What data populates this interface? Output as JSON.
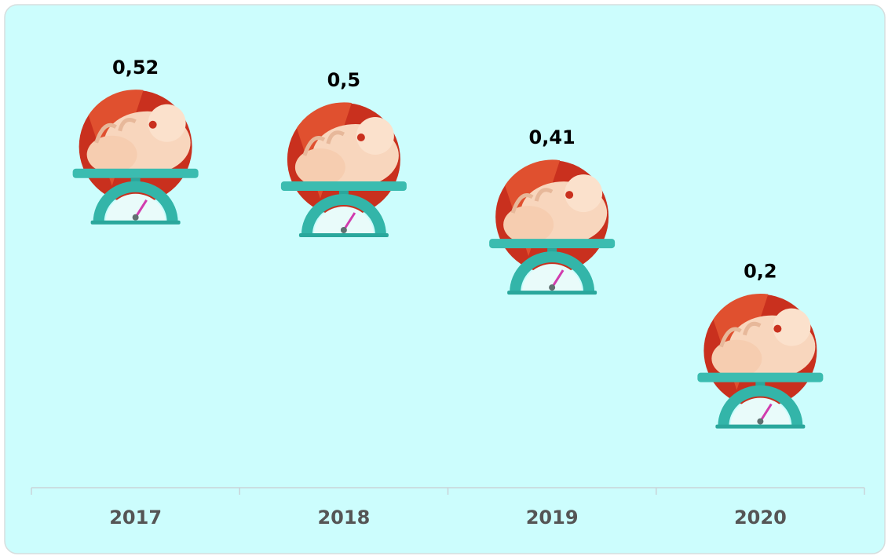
{
  "chart_data": {
    "type": "pictorial",
    "categories": [
      "2017",
      "2018",
      "2019",
      "2020"
    ],
    "values": [
      0.52,
      0.5,
      0.41,
      0.2
    ],
    "value_labels": [
      "0,52",
      "0,5",
      "0,41",
      "0,2"
    ]
  }
}
